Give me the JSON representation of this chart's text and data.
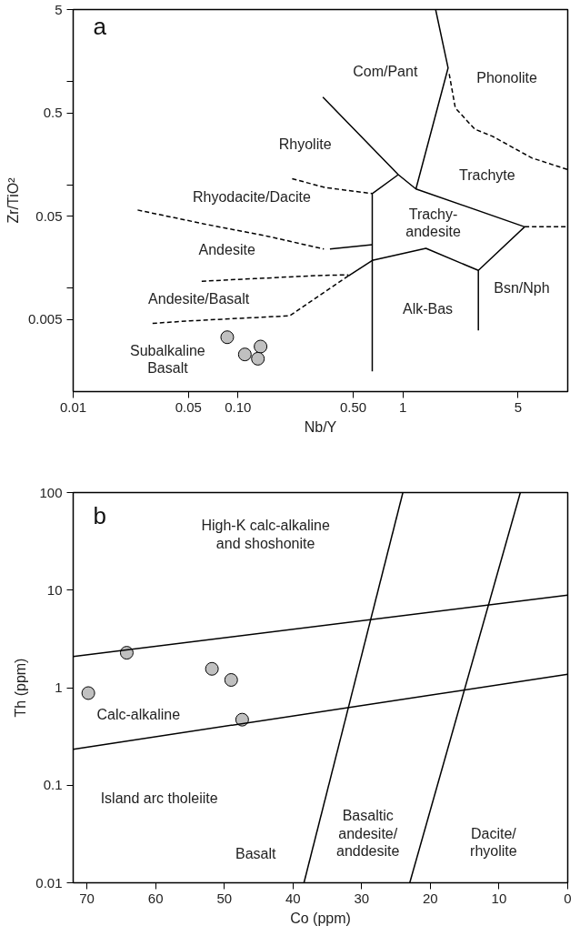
{
  "chart_data": [
    {
      "type": "scatter",
      "title": "a",
      "xlabel": "Nb/Y",
      "ylabel": "Zr/TiO²",
      "log": "xy",
      "xlim": [
        0.01,
        10
      ],
      "ylim": [
        0.001,
        5
      ],
      "xticks": [
        0.01,
        0.05,
        {
          "value": 0.1,
          "label": "0.10"
        },
        {
          "value": 0.5,
          "label": "0.50"
        },
        1,
        5
      ],
      "yticks": [
        0.005,
        {
          "value": 0.01,
          "label": null
        },
        0.05,
        {
          "value": 0.1,
          "label": null
        },
        0.5,
        {
          "value": 1,
          "label": null
        },
        5
      ],
      "grid": false,
      "series": [
        {
          "marker": "circle",
          "color": "#c0c0c0",
          "x": [
            0.086,
            0.11,
            0.137,
            0.132
          ],
          "values": [
            0.00336,
            0.00229,
            0.00273,
            0.00208
          ]
        },
        {
          "type": "line",
          "color": "#000000",
          "line_style": "solid",
          "x": [
            0.327,
            0.938,
            1.2,
            5.48,
            2.87,
            1.38,
            0.652,
            0.652,
            0.938
          ],
          "values": [
            0.71,
            0.126,
            0.0916,
            0.0394,
            0.0149,
            0.0244,
            0.0186,
            0.0826,
            0.126
          ]
        },
        {
          "type": "line",
          "color": "#000000",
          "line_style": "solid",
          "x": [
            1.2,
            1.88,
            1.58
          ],
          "values": [
            0.0916,
            1.36,
            5
          ]
        },
        {
          "type": "line",
          "color": "#000000",
          "line_style": "solid",
          "x": [
            0.652,
            0.652
          ],
          "values": [
            0.0186,
            0.00157
          ]
        },
        {
          "type": "line",
          "color": "#000000",
          "line_style": "solid",
          "x": [
            2.87,
            2.87
          ],
          "values": [
            0.0149,
            0.00391
          ]
        },
        {
          "type": "line",
          "color": "#000000",
          "line_style": "solid",
          "x": [
            0.361,
            0.652
          ],
          "values": [
            0.024,
            0.0264
          ]
        },
        {
          "type": "line",
          "color": "#000000",
          "line_style": "solid",
          "x": [
            0.467,
            0.652
          ],
          "values": [
            0.0132,
            0.0186
          ]
        },
        {
          "type": "line",
          "color": "#000000",
          "line_style": "dashed",
          "x": [
            0.213,
            0.338,
            0.652
          ],
          "values": [
            0.115,
            0.0946,
            0.0826
          ]
        },
        {
          "type": "line",
          "color": "#000000",
          "line_style": "dashed",
          "x": [
            0.0246,
            0.0623,
            0.153,
            0.332
          ],
          "values": [
            0.0573,
            0.042,
            0.0318,
            0.024
          ]
        },
        {
          "type": "line",
          "color": "#000000",
          "line_style": "dashed",
          "x": [
            0.0602,
            0.125,
            0.306,
            0.467
          ],
          "values": [
            0.0117,
            0.0124,
            0.0133,
            0.0135
          ]
        },
        {
          "type": "line",
          "color": "#000000",
          "line_style": "dashed",
          "x": [
            0.0303,
            0.0511,
            0.0929,
            0.206,
            0.467
          ],
          "values": [
            0.00458,
            0.00484,
            0.00508,
            0.00542,
            0.0132
          ]
        },
        {
          "type": "line",
          "color": "#000000",
          "line_style": "dashed",
          "x": [
            5.48,
            10
          ],
          "values": [
            0.0394,
            0.0394
          ]
        },
        {
          "type": "line",
          "color": "#000000",
          "line_style": "dashed",
          "x": [
            1.91,
            2.08,
            2.73,
            3.5,
            6.05,
            10
          ],
          "values": [
            1.19,
            0.558,
            0.347,
            0.296,
            0.183,
            0.141
          ]
        }
      ],
      "annotations": [
        "Com/Pant",
        "Phonolite",
        "Rhyolite",
        "Trachyte",
        "Rhyodacite/Dacite",
        "Trachy-\nandesite",
        "Andesite",
        "Andesite/Basalt",
        "Bsn/Nph",
        "Alk-Bas",
        "Subalkaline\nBasalt"
      ]
    },
    {
      "type": "scatter",
      "title": "b",
      "xlabel": "Co (ppm)",
      "ylabel": "Th (ppm)",
      "log": "y",
      "xlim": [
        72,
        0
      ],
      "ylim": [
        0.01,
        100
      ],
      "xticks": [
        70,
        60,
        50,
        40,
        30,
        20,
        10,
        0
      ],
      "yticks": [
        0.01,
        0.1,
        1,
        10,
        100
      ],
      "grid": false,
      "series": [
        {
          "marker": "circle",
          "color": "#c0c0c0",
          "x": [
            69.8,
            64.2,
            51.8,
            49.0,
            47.4
          ],
          "values": [
            0.88,
            2.28,
            1.56,
            1.2,
            0.47
          ]
        },
        {
          "type": "line",
          "color": "#000000",
          "line_style": "solid",
          "x": [
            72,
            0
          ],
          "values": [
            2.09,
            8.87
          ]
        },
        {
          "type": "line",
          "color": "#000000",
          "line_style": "solid",
          "x": [
            72,
            0
          ],
          "values": [
            0.234,
            1.37
          ]
        },
        {
          "type": "line",
          "color": "#000000",
          "line_style": "solid",
          "x": [
            38.4,
            24.0
          ],
          "values": [
            0.01,
            100
          ]
        },
        {
          "type": "line",
          "color": "#000000",
          "line_style": "solid",
          "x": [
            23.0,
            6.9
          ],
          "values": [
            0.01,
            100
          ]
        }
      ],
      "annotations": [
        "High-K calc-alkaline\nand shoshonite",
        "Calc-alkaline",
        "Island arc tholeiite",
        "Basalt",
        "Basaltic\nandesite/\nanddesite",
        "Dacite/\nrhyolite"
      ]
    }
  ]
}
